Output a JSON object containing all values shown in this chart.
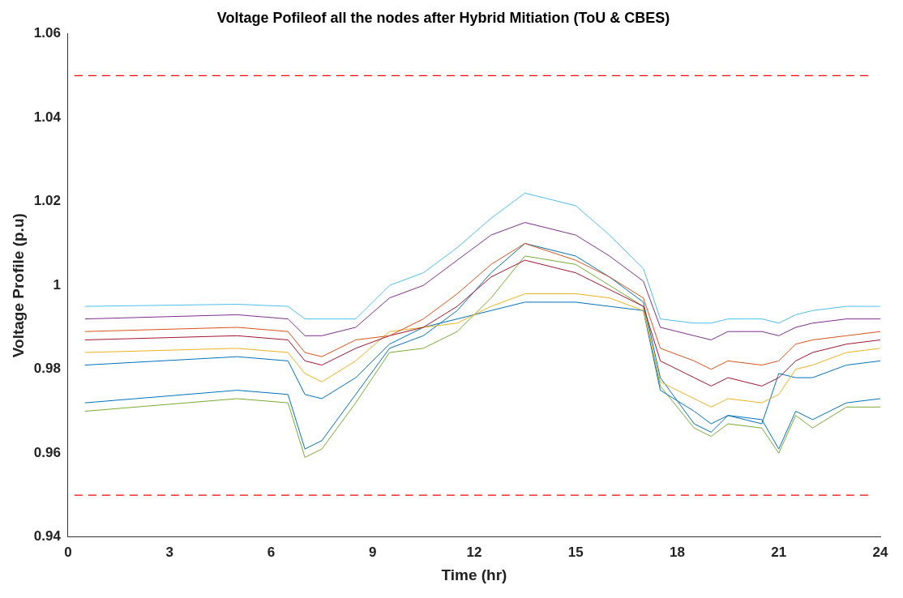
{
  "chart_data": {
    "type": "line",
    "title": "Voltage Pofileof all the nodes after Hybrid Mitiation (ToU & CBES)",
    "xlabel": "Time (hr)",
    "ylabel": "Voltage Profile (p.u)",
    "x": [
      0.5,
      5,
      6.5,
      7,
      7.5,
      8.5,
      9.5,
      10.5,
      11.5,
      12.5,
      13.5,
      15,
      16,
      17,
      17.5,
      18.5,
      19,
      19.5,
      20.5,
      21,
      21.5,
      22,
      23,
      24
    ],
    "xlim": [
      0,
      24
    ],
    "xticks": [
      0,
      3,
      6,
      9,
      12,
      15,
      18,
      21,
      24
    ],
    "ylim": [
      0.94,
      1.06
    ],
    "yticks": [
      0.94,
      0.96,
      0.98,
      1,
      1.02,
      1.04,
      1.06
    ],
    "grid": false,
    "legend": false,
    "marker": "none",
    "line_style": "solid",
    "series": [
      {
        "color": "#4dbeee",
        "values": [
          0.995,
          0.9955,
          0.995,
          0.992,
          0.992,
          0.992,
          1.0,
          1.003,
          1.009,
          1.016,
          1.022,
          1.019,
          1.012,
          1.004,
          0.992,
          0.991,
          0.991,
          0.992,
          0.992,
          0.991,
          0.993,
          0.994,
          0.995,
          0.995
        ]
      },
      {
        "color": "#7e2f8e",
        "values": [
          0.992,
          0.993,
          0.992,
          0.988,
          0.988,
          0.99,
          0.997,
          1.0,
          1.006,
          1.012,
          1.015,
          1.012,
          1.007,
          1.001,
          0.99,
          0.988,
          0.987,
          0.989,
          0.989,
          0.988,
          0.99,
          0.991,
          0.992,
          0.992
        ]
      },
      {
        "color": "#d95319",
        "values": [
          0.989,
          0.99,
          0.989,
          0.984,
          0.983,
          0.987,
          0.988,
          0.992,
          0.998,
          1.005,
          1.01,
          1.006,
          1.002,
          0.997,
          0.985,
          0.982,
          0.98,
          0.982,
          0.981,
          0.982,
          0.986,
          0.987,
          0.988,
          0.989
        ]
      },
      {
        "color": "#a2142f",
        "values": [
          0.987,
          0.988,
          0.987,
          0.982,
          0.981,
          0.985,
          0.988,
          0.99,
          0.995,
          1.002,
          1.006,
          1.003,
          0.999,
          0.995,
          0.982,
          0.978,
          0.976,
          0.978,
          0.976,
          0.978,
          0.982,
          0.984,
          0.986,
          0.987
        ]
      },
      {
        "color": "#edb120",
        "values": [
          0.984,
          0.985,
          0.984,
          0.979,
          0.977,
          0.982,
          0.989,
          0.99,
          0.991,
          0.995,
          0.998,
          0.998,
          0.997,
          0.994,
          0.977,
          0.973,
          0.971,
          0.973,
          0.972,
          0.974,
          0.98,
          0.981,
          0.984,
          0.985
        ]
      },
      {
        "color": "#0072bd",
        "values": [
          0.981,
          0.983,
          0.982,
          0.974,
          0.973,
          0.978,
          0.986,
          0.99,
          0.992,
          0.994,
          0.996,
          0.996,
          0.995,
          0.994,
          0.975,
          0.97,
          0.967,
          0.969,
          0.967,
          0.979,
          0.978,
          0.978,
          0.981,
          0.982
        ]
      },
      {
        "color": "#77ac30",
        "values": [
          0.97,
          0.973,
          0.972,
          0.959,
          0.961,
          0.972,
          0.984,
          0.985,
          0.989,
          0.997,
          1.007,
          1.005,
          1.0,
          0.995,
          0.976,
          0.966,
          0.964,
          0.967,
          0.966,
          0.96,
          0.969,
          0.966,
          0.971,
          0.971
        ]
      },
      {
        "color": "#0072bd",
        "values": [
          0.972,
          0.975,
          0.974,
          0.961,
          0.963,
          0.974,
          0.985,
          0.988,
          0.994,
          1.003,
          1.01,
          1.007,
          1.002,
          0.996,
          0.978,
          0.967,
          0.965,
          0.969,
          0.968,
          0.961,
          0.97,
          0.968,
          0.972,
          0.973
        ]
      }
    ],
    "ref_lines": [
      {
        "axis": "y",
        "value": 1.05,
        "color": "#ff0000",
        "line_style": "dashed"
      },
      {
        "axis": "y",
        "value": 0.95,
        "color": "#ff0000",
        "line_style": "dashed"
      }
    ]
  }
}
